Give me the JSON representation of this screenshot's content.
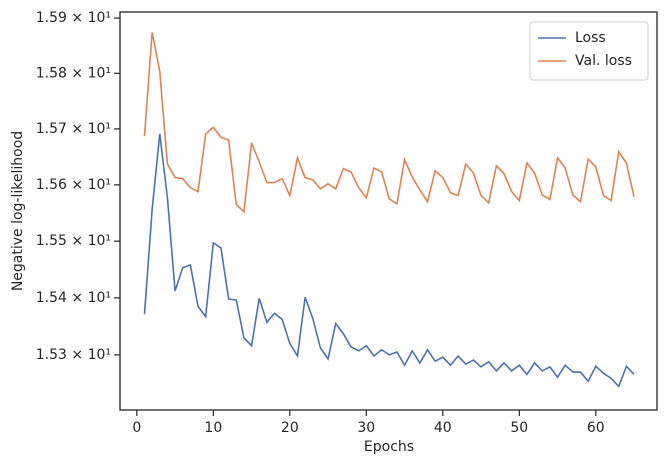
{
  "chart_data": {
    "type": "line",
    "x_label": "Epochs",
    "y_label": "Negative log-likelihood",
    "x": [
      1,
      2,
      3,
      4,
      5,
      6,
      7,
      8,
      9,
      10,
      11,
      12,
      13,
      14,
      15,
      16,
      17,
      18,
      19,
      20,
      21,
      22,
      23,
      24,
      25,
      26,
      27,
      28,
      29,
      30,
      31,
      32,
      33,
      34,
      35,
      36,
      37,
      38,
      39,
      40,
      41,
      42,
      43,
      44,
      45,
      46,
      47,
      48,
      49,
      50,
      51,
      52,
      53,
      54,
      55,
      56,
      57,
      58,
      59,
      60,
      61,
      62,
      63,
      64,
      65
    ],
    "series": [
      {
        "name": "Loss",
        "color": "#4c72b0",
        "values": [
          15.371,
          15.556,
          15.691,
          15.577,
          15.412,
          15.453,
          15.458,
          15.385,
          15.367,
          15.497,
          15.488,
          15.398,
          15.396,
          15.33,
          15.316,
          15.399,
          15.357,
          15.373,
          15.362,
          15.32,
          15.298,
          15.401,
          15.364,
          15.312,
          15.293,
          15.355,
          15.337,
          15.314,
          15.307,
          15.316,
          15.298,
          15.309,
          15.3,
          15.305,
          15.282,
          15.307,
          15.286,
          15.309,
          15.289,
          15.296,
          15.282,
          15.298,
          15.284,
          15.291,
          15.279,
          15.288,
          15.272,
          15.286,
          15.272,
          15.282,
          15.266,
          15.286,
          15.272,
          15.279,
          15.261,
          15.282,
          15.27,
          15.27,
          15.254,
          15.28,
          15.268,
          15.259,
          15.245,
          15.28,
          15.266
        ]
      },
      {
        "name": "Val. loss",
        "color": "#dd8452",
        "values": [
          15.687,
          15.874,
          15.803,
          15.637,
          15.613,
          15.611,
          15.595,
          15.588,
          15.691,
          15.703,
          15.685,
          15.68,
          15.565,
          15.552,
          15.675,
          15.641,
          15.604,
          15.604,
          15.611,
          15.581,
          15.648,
          15.613,
          15.609,
          15.593,
          15.602,
          15.593,
          15.629,
          15.623,
          15.595,
          15.577,
          15.63,
          15.623,
          15.575,
          15.566,
          15.645,
          15.614,
          15.591,
          15.57,
          15.625,
          15.613,
          15.586,
          15.581,
          15.637,
          15.621,
          15.581,
          15.568,
          15.634,
          15.62,
          15.588,
          15.572,
          15.639,
          15.621,
          15.582,
          15.574,
          15.648,
          15.63,
          15.582,
          15.57,
          15.646,
          15.632,
          15.581,
          15.572,
          15.659,
          15.639,
          15.579
        ]
      }
    ],
    "xlim": [
      -2.2,
      68.0
    ],
    "xticks": [
      0,
      10,
      20,
      30,
      40,
      50,
      60
    ],
    "ylim": [
      15.204,
      15.911
    ],
    "yscale": "log",
    "yticks": [
      {
        "value": 15.3,
        "label": "1.53 × 10¹"
      },
      {
        "value": 15.4,
        "label": "1.54 × 10¹"
      },
      {
        "value": 15.5,
        "label": "1.55 × 10¹"
      },
      {
        "value": 15.6,
        "label": "1.56 × 10¹"
      },
      {
        "value": 15.7,
        "label": "1.57 × 10¹"
      },
      {
        "value": 15.8,
        "label": "1.58 × 10¹"
      },
      {
        "value": 15.9,
        "label": "1.59 × 10¹"
      }
    ],
    "legend": "upper right"
  }
}
